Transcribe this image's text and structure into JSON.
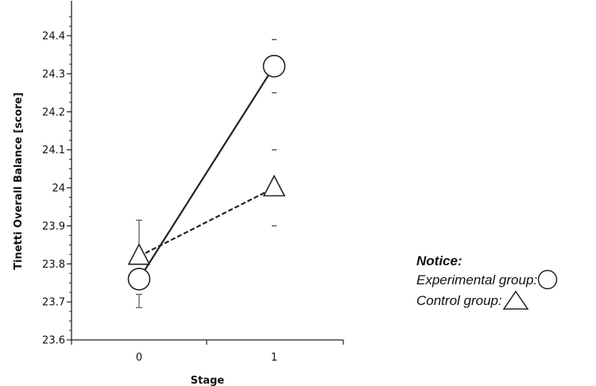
{
  "chart_data": {
    "type": "line",
    "xlabel": "Stage",
    "ylabel": "Tinetti Overall Balance [score]",
    "categories": [
      "0",
      "1"
    ],
    "ylim": [
      23.6,
      24.45
    ],
    "y_ticks": [
      "23.6",
      "23.7",
      "23.8",
      "23.9",
      "24",
      "24.1",
      "24.2",
      "24.3",
      "24.4"
    ],
    "series": [
      {
        "key": "experimental",
        "marker": "circle",
        "line_style": "solid",
        "values": [
          23.76,
          24.32
        ],
        "error_bars": [
          {
            "low": 23.685,
            "high": 23.72
          },
          {
            "low": 24.25,
            "high": 24.39
          }
        ]
      },
      {
        "key": "control",
        "marker": "triangle",
        "line_style": "dashed",
        "values": [
          23.82,
          24.0
        ],
        "error_bars": [
          {
            "low": 23.82,
            "high": 23.915
          },
          {
            "low": 23.9,
            "high": 24.1
          }
        ]
      }
    ],
    "legend_placement": "right",
    "grid": false
  },
  "legend": {
    "title": "Notice:",
    "experimental_label": "Experimental group:",
    "control_label": "Control group:"
  }
}
